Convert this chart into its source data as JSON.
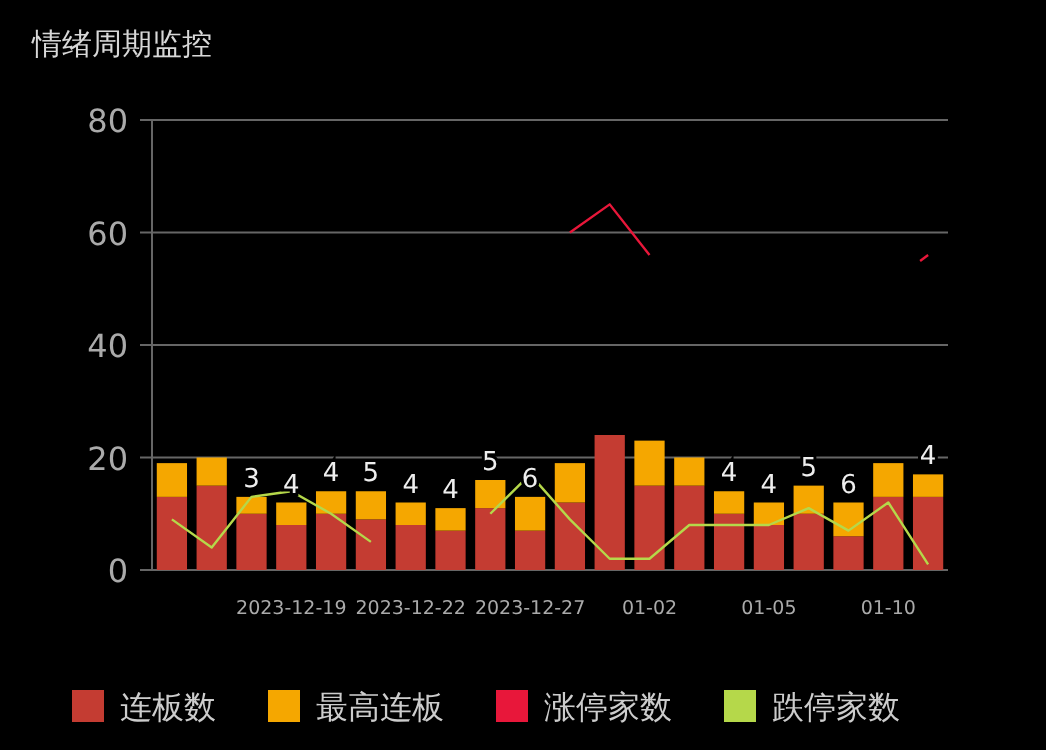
{
  "chart_data": {
    "type": "bar",
    "title": "情绪周期监控",
    "stacked": true,
    "categories": [
      null,
      null,
      null,
      "2023-12-19",
      null,
      null,
      "2023-12-22",
      null,
      null,
      "2023-12-27",
      null,
      null,
      "01-02",
      null,
      null,
      "01-05",
      null,
      null,
      "01-10",
      null
    ],
    "series": [
      {
        "name": "连板数",
        "color": "#c43c32",
        "values": [
          13,
          15,
          10,
          8,
          10,
          9,
          8,
          7,
          11,
          7,
          12,
          24,
          15,
          15,
          10,
          8,
          10,
          6,
          13,
          13
        ]
      },
      {
        "name": "最高连板",
        "color": "#f5a700",
        "values": [
          6,
          5,
          3,
          4,
          4,
          5,
          4,
          4,
          5,
          6,
          7,
          null,
          8,
          5,
          4,
          4,
          5,
          6,
          6,
          4
        ],
        "value_labels": [
          null,
          null,
          "3",
          "4",
          "4",
          "5",
          "4",
          "4",
          "5",
          "6",
          null,
          null,
          null,
          null,
          "4",
          "4",
          "5",
          "6",
          null,
          "4"
        ]
      },
      {
        "name": "涨停家数",
        "type": "line",
        "color": "#e8173a",
        "values": [
          null,
          null,
          null,
          null,
          null,
          null,
          null,
          null,
          null,
          null,
          60,
          65,
          56,
          null,
          null,
          null,
          null,
          null,
          null,
          56
        ]
      },
      {
        "name": "跌停家数",
        "type": "line",
        "color": "#b5d84a",
        "values": [
          9,
          4,
          13,
          14,
          10,
          5,
          null,
          null,
          10,
          17,
          9,
          2,
          2,
          8,
          8,
          8,
          11,
          7,
          12,
          1
        ]
      }
    ],
    "ylim": [
      0,
      80
    ],
    "yticks": [
      0,
      20,
      40,
      60,
      80
    ],
    "grid": "y",
    "legend": "bottom"
  }
}
